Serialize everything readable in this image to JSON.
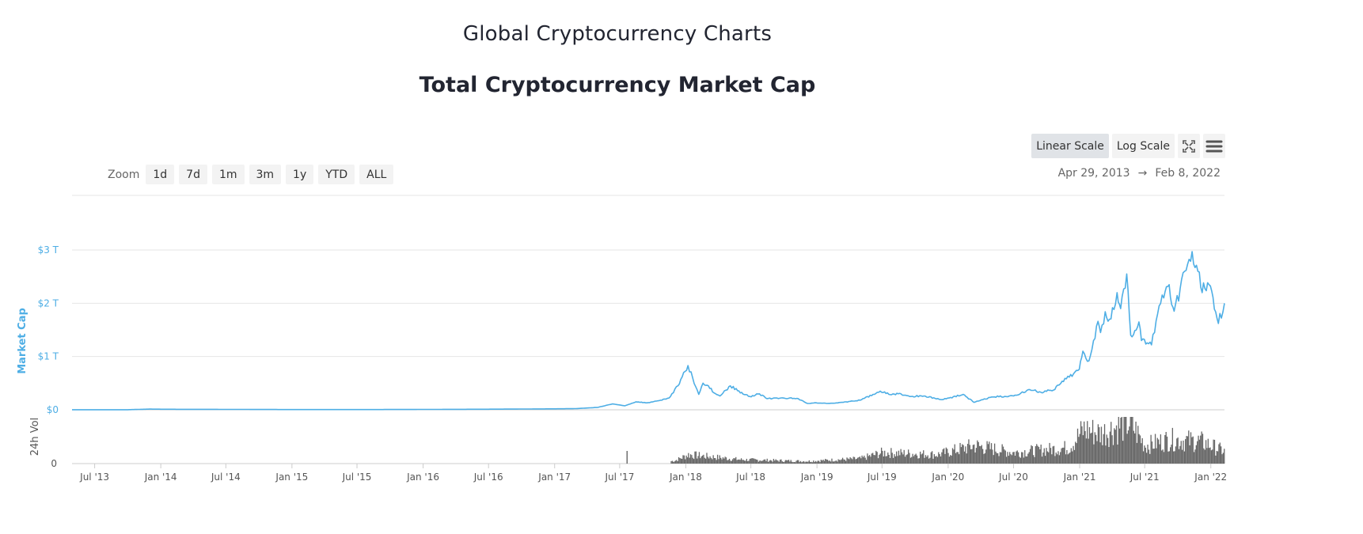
{
  "page": {
    "title": "Global Cryptocurrency Charts",
    "chart_title": "Total Cryptocurrency Market Cap"
  },
  "zoom": {
    "label": "Zoom",
    "buttons": [
      "1d",
      "7d",
      "1m",
      "3m",
      "1y",
      "YTD",
      "ALL"
    ]
  },
  "scale": {
    "linear_label": "Linear Scale",
    "log_label": "Log Scale",
    "active": "linear",
    "fullscreen_icon": "fullscreen-icon",
    "menu_icon": "hamburger-menu-icon"
  },
  "range": {
    "from": "Apr 29, 2013",
    "arrow": "→",
    "to": "Feb 8, 2022"
  },
  "chart_data": {
    "type": "line",
    "title": "Total Cryptocurrency Market Cap",
    "ylabel": "Market Cap",
    "ylabel_volume": "24h Vol",
    "line_color": "#4eaee5",
    "volume_color": "#666666",
    "ylim": [
      0,
      3
    ],
    "y_ticks": [
      {
        "value": 0,
        "label": "$0"
      },
      {
        "value": 1,
        "label": "$1 T"
      },
      {
        "value": 2,
        "label": "$2 T"
      },
      {
        "value": 3,
        "label": "$3 T"
      }
    ],
    "volume_ticks": [
      {
        "value": 0,
        "label": "0"
      }
    ],
    "x_ticks": [
      {
        "date": "2013-07-01",
        "label": "Jul '13"
      },
      {
        "date": "2014-01-01",
        "label": "Jan '14"
      },
      {
        "date": "2014-07-01",
        "label": "Jul '14"
      },
      {
        "date": "2015-01-01",
        "label": "Jan '15"
      },
      {
        "date": "2015-07-01",
        "label": "Jul '15"
      },
      {
        "date": "2016-01-01",
        "label": "Jan '16"
      },
      {
        "date": "2016-07-01",
        "label": "Jul '16"
      },
      {
        "date": "2017-01-01",
        "label": "Jan '17"
      },
      {
        "date": "2017-07-01",
        "label": "Jul '17"
      },
      {
        "date": "2018-01-01",
        "label": "Jan '18"
      },
      {
        "date": "2018-07-01",
        "label": "Jul '18"
      },
      {
        "date": "2019-01-01",
        "label": "Jan '19"
      },
      {
        "date": "2019-07-01",
        "label": "Jul '19"
      },
      {
        "date": "2020-01-01",
        "label": "Jan '20"
      },
      {
        "date": "2020-07-01",
        "label": "Jul '20"
      },
      {
        "date": "2021-01-01",
        "label": "Jan '21"
      },
      {
        "date": "2021-07-01",
        "label": "Jul '21"
      },
      {
        "date": "2022-01-01",
        "label": "Jan '22"
      }
    ],
    "series": [
      {
        "unit": "T USD",
        "points": [
          [
            "2013-04-29",
            0.0015
          ],
          [
            "2013-07-01",
            0.0012
          ],
          [
            "2013-10-01",
            0.002
          ],
          [
            "2013-12-01",
            0.013
          ],
          [
            "2014-01-01",
            0.011
          ],
          [
            "2014-03-01",
            0.009
          ],
          [
            "2014-07-01",
            0.008
          ],
          [
            "2014-12-01",
            0.005
          ],
          [
            "2015-01-01",
            0.005
          ],
          [
            "2015-07-01",
            0.004
          ],
          [
            "2016-01-01",
            0.007
          ],
          [
            "2016-07-01",
            0.011
          ],
          [
            "2017-01-01",
            0.018
          ],
          [
            "2017-03-01",
            0.022
          ],
          [
            "2017-05-01",
            0.045
          ],
          [
            "2017-06-10",
            0.11
          ],
          [
            "2017-07-15",
            0.075
          ],
          [
            "2017-08-15",
            0.15
          ],
          [
            "2017-09-15",
            0.13
          ],
          [
            "2017-10-15",
            0.17
          ],
          [
            "2017-11-15",
            0.22
          ],
          [
            "2017-12-10",
            0.45
          ],
          [
            "2017-12-22",
            0.62
          ],
          [
            "2018-01-07",
            0.83
          ],
          [
            "2018-01-20",
            0.6
          ],
          [
            "2018-02-06",
            0.29
          ],
          [
            "2018-02-18",
            0.5
          ],
          [
            "2018-03-05",
            0.45
          ],
          [
            "2018-03-20",
            0.32
          ],
          [
            "2018-04-06",
            0.26
          ],
          [
            "2018-05-05",
            0.45
          ],
          [
            "2018-05-25",
            0.36
          ],
          [
            "2018-06-28",
            0.25
          ],
          [
            "2018-07-25",
            0.3
          ],
          [
            "2018-08-15",
            0.21
          ],
          [
            "2018-10-01",
            0.22
          ],
          [
            "2018-11-10",
            0.21
          ],
          [
            "2018-12-05",
            0.12
          ],
          [
            "2018-12-30",
            0.13
          ],
          [
            "2019-02-01",
            0.12
          ],
          [
            "2019-03-15",
            0.14
          ],
          [
            "2019-05-01",
            0.18
          ],
          [
            "2019-06-26",
            0.35
          ],
          [
            "2019-07-20",
            0.29
          ],
          [
            "2019-08-15",
            0.3
          ],
          [
            "2019-09-20",
            0.25
          ],
          [
            "2019-10-26",
            0.26
          ],
          [
            "2019-12-15",
            0.19
          ],
          [
            "2020-02-12",
            0.29
          ],
          [
            "2020-03-13",
            0.14
          ],
          [
            "2020-05-01",
            0.24
          ],
          [
            "2020-07-01",
            0.26
          ],
          [
            "2020-08-15",
            0.38
          ],
          [
            "2020-09-15",
            0.33
          ],
          [
            "2020-10-20",
            0.37
          ],
          [
            "2020-11-25",
            0.58
          ],
          [
            "2020-12-31",
            0.76
          ],
          [
            "2021-01-10",
            1.1
          ],
          [
            "2021-01-27",
            0.92
          ],
          [
            "2021-02-21",
            1.66
          ],
          [
            "2021-02-28",
            1.45
          ],
          [
            "2021-03-13",
            1.84
          ],
          [
            "2021-03-25",
            1.7
          ],
          [
            "2021-04-15",
            2.2
          ],
          [
            "2021-04-25",
            1.9
          ],
          [
            "2021-05-12",
            2.55
          ],
          [
            "2021-05-23",
            1.4
          ],
          [
            "2021-06-15",
            1.65
          ],
          [
            "2021-06-22",
            1.3
          ],
          [
            "2021-07-20",
            1.22
          ],
          [
            "2021-08-10",
            1.95
          ],
          [
            "2021-08-23",
            2.1
          ],
          [
            "2021-09-07",
            2.35
          ],
          [
            "2021-09-21",
            1.85
          ],
          [
            "2021-10-20",
            2.6
          ],
          [
            "2021-11-10",
            2.97
          ],
          [
            "2021-11-26",
            2.6
          ],
          [
            "2021-12-04",
            2.3
          ],
          [
            "2021-12-27",
            2.35
          ],
          [
            "2022-01-22",
            1.62
          ],
          [
            "2022-02-08",
            2.0
          ]
        ]
      }
    ],
    "volume_note": "24h volume bars, shown relative height only",
    "volume_series": [
      [
        "2017-01-01",
        0.0
      ],
      [
        "2017-06-01",
        0.0
      ],
      [
        "2017-07-20",
        1.0
      ],
      [
        "2017-10-01",
        0.0
      ],
      [
        "2017-12-01",
        0.15
      ],
      [
        "2018-01-07",
        0.45
      ],
      [
        "2018-06-01",
        0.2
      ],
      [
        "2018-12-01",
        0.12
      ],
      [
        "2019-05-01",
        0.25
      ],
      [
        "2019-07-01",
        0.55
      ],
      [
        "2019-12-01",
        0.45
      ],
      [
        "2020-03-13",
        0.9
      ],
      [
        "2020-07-01",
        0.55
      ],
      [
        "2020-12-01",
        0.8
      ],
      [
        "2021-01-11",
        1.7
      ],
      [
        "2021-03-01",
        1.5
      ],
      [
        "2021-05-19",
        2.1
      ],
      [
        "2021-07-01",
        0.9
      ],
      [
        "2021-09-07",
        1.2
      ],
      [
        "2021-12-04",
        1.1
      ],
      [
        "2022-02-08",
        0.6
      ]
    ]
  }
}
